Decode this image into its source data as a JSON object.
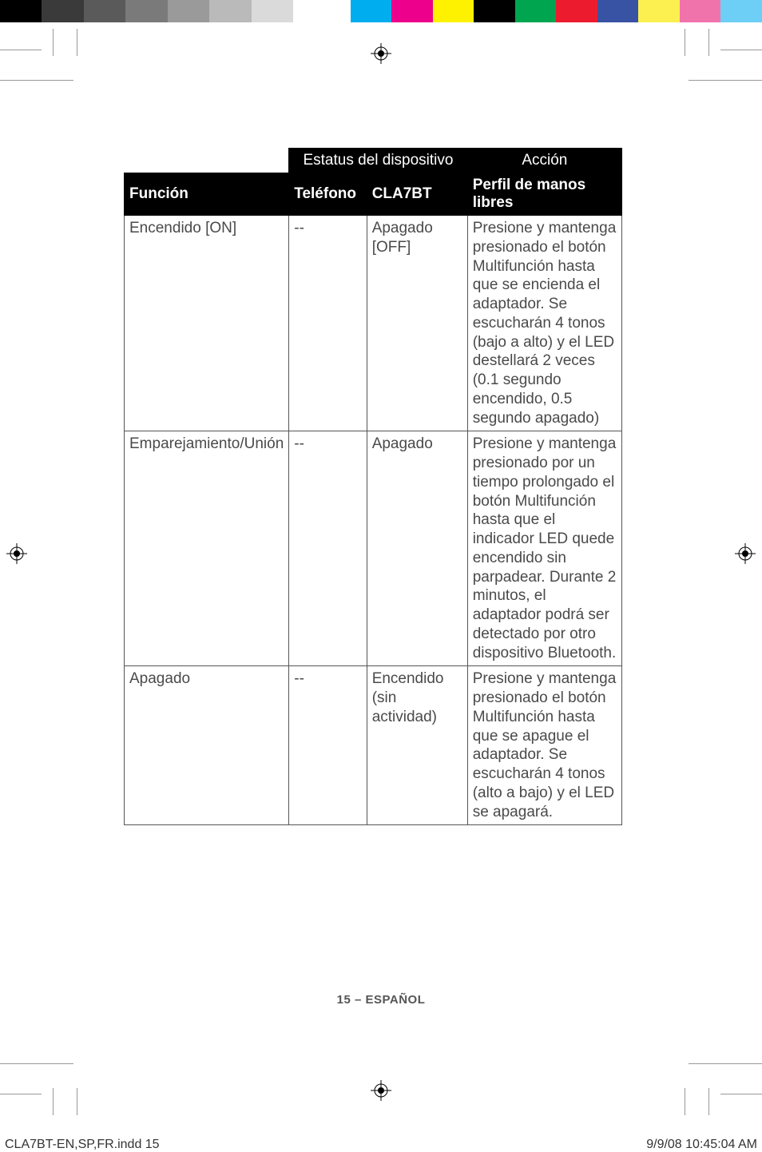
{
  "colorbar": {
    "left": [
      "#000000",
      "#3a3a3a",
      "#5a5a5a",
      "#7a7a7a",
      "#9a9a9a",
      "#bababa",
      "#dadada",
      "#ffffff"
    ],
    "right": [
      "#00adee",
      "#ec008c",
      "#fff200",
      "#000000",
      "#00a550",
      "#ed1b2e",
      "#3853a3",
      "#fbf050",
      "#f173ac",
      "#6dcff6"
    ]
  },
  "table": {
    "header1": {
      "status": "Estatus del dispositivo",
      "action": "Acción"
    },
    "header2": {
      "funcion": "Función",
      "telefono": "Teléfono",
      "cla7bt": "CLA7BT",
      "perfil": "Perfil de manos libres"
    },
    "rows": [
      {
        "funcion": "Encendido [ON]",
        "telefono": "--",
        "cla7bt": "Apagado [OFF]",
        "accion": "Presione y mantenga presionado el botón Multifunción hasta que se encienda el adaptador. Se escucharán 4 tonos (bajo a alto) y el LED destellará 2 veces (0.1 segundo encendido, 0.5 segundo apagado)"
      },
      {
        "funcion": "Emparejamiento/Unión",
        "telefono": "--",
        "cla7bt": "Apagado",
        "accion": "Presione y mantenga presionado por un tiempo prolongado el botón Multifunción hasta que el indicador LED quede encendido sin parpadear. Durante 2 minutos, el adaptador podrá ser detectado por otro dispositivo Bluetooth."
      },
      {
        "funcion": "Apagado",
        "telefono": "--",
        "cla7bt": "Encendido (sin actividad)",
        "accion": "Presione y mantenga presionado el botón Multifunción hasta que se apague el adaptador. Se escucharán 4 tonos (alto a bajo) y el LED se apagará."
      }
    ]
  },
  "footer": "15 – ESPAÑOL",
  "printinfo": {
    "file": "CLA7BT-EN,SP,FR.indd   15",
    "datetime": "9/9/08   10:45:04 AM"
  }
}
